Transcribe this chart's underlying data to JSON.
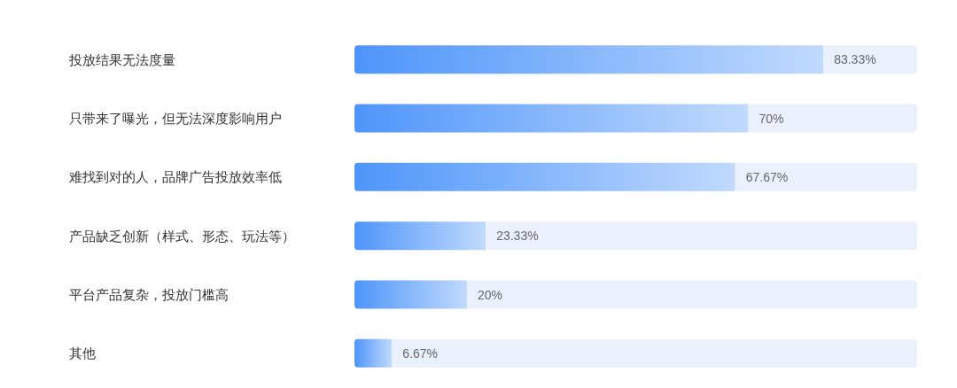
{
  "chart_data": {
    "type": "bar",
    "orientation": "horizontal",
    "stacked": true,
    "categories": [
      "投放结果无法度量",
      "只带来了曝光，但无法深度影响用户",
      "难找到对的人，品牌广告投放效率低",
      "产品缺乏创新（样式、形态、玩法等）",
      "平台产品复杂，投放门槛高",
      "其他"
    ],
    "series": [
      {
        "color": "#4e95fa",
        "values": [
          83.33,
          70,
          67.67,
          23.33,
          20,
          6.67
        ],
        "value_labels": [
          "83.33%",
          "70%",
          "67.67%",
          "23.33%",
          "20%",
          "6.67%"
        ]
      },
      {
        "color": "#eaf1fd",
        "values": [
          16.67,
          30,
          32.33,
          76.67,
          80,
          93.33
        ]
      }
    ],
    "xlim": [
      0,
      100
    ],
    "tick_labels": "y"
  }
}
